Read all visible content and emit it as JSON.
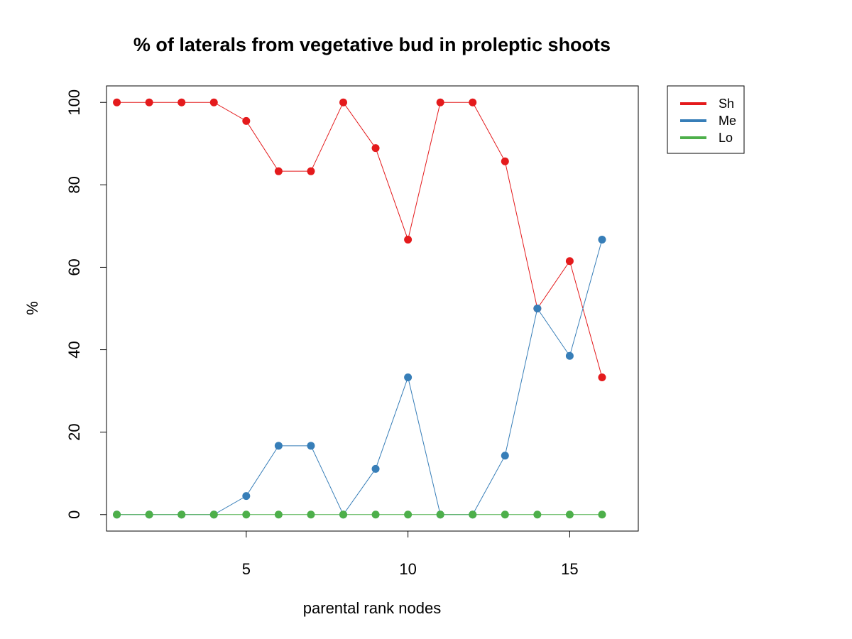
{
  "chart_data": {
    "type": "line",
    "title": "% of laterals from vegetative bud in proleptic shoots",
    "xlabel": "parental rank nodes",
    "ylabel": "%",
    "x": [
      1,
      2,
      3,
      4,
      5,
      6,
      7,
      8,
      9,
      10,
      11,
      12,
      13,
      14,
      15,
      16
    ],
    "xlim": [
      0.68,
      17.12
    ],
    "ylim": [
      -4,
      104
    ],
    "xticks": [
      5,
      10,
      15
    ],
    "yticks": [
      0,
      20,
      40,
      60,
      80,
      100
    ],
    "grid": false,
    "legend_position": "outside-top-right",
    "series": [
      {
        "name": "Sh",
        "color": "#E41A1C",
        "values": [
          100,
          100,
          100,
          100,
          95.5,
          83.3,
          83.3,
          100,
          88.9,
          66.7,
          100,
          100,
          85.7,
          50,
          61.5,
          33.3
        ]
      },
      {
        "name": "Me",
        "color": "#377EB8",
        "values": [
          0,
          0,
          0,
          0,
          4.5,
          16.7,
          16.7,
          0,
          11.1,
          33.3,
          0,
          0,
          14.3,
          50,
          38.5,
          66.7
        ]
      },
      {
        "name": "Lo",
        "color": "#4DAF4A",
        "values": [
          0,
          0,
          0,
          0,
          0,
          0,
          0,
          0,
          0,
          0,
          0,
          0,
          0,
          0,
          0,
          0
        ]
      }
    ]
  }
}
